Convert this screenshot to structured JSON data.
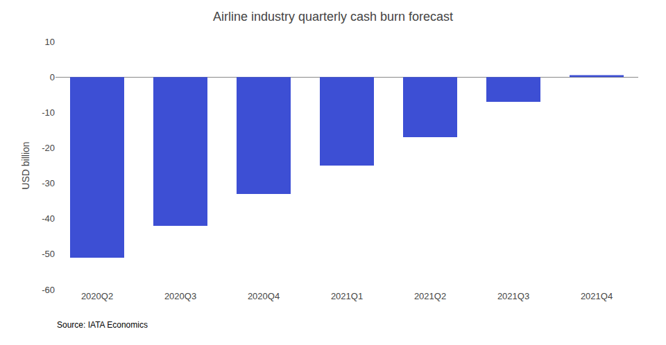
{
  "chart_data": {
    "type": "bar",
    "title": "Airline industry quarterly cash burn forecast",
    "ylabel": "USD billion",
    "annotations": [
      "Source: IATA Economics"
    ],
    "categories": [
      "2020Q2",
      "2020Q3",
      "2020Q4",
      "2021Q1",
      "2021Q2",
      "2021Q3",
      "2021Q4"
    ],
    "values": [
      -51,
      -42,
      -33,
      -25,
      -17,
      -7,
      0.5
    ],
    "color": "#3d4fd4",
    "ylim": [
      -60,
      10
    ],
    "yticks": [
      -60,
      -50,
      -40,
      -30,
      -20,
      -10,
      0,
      10
    ],
    "grid": false
  }
}
